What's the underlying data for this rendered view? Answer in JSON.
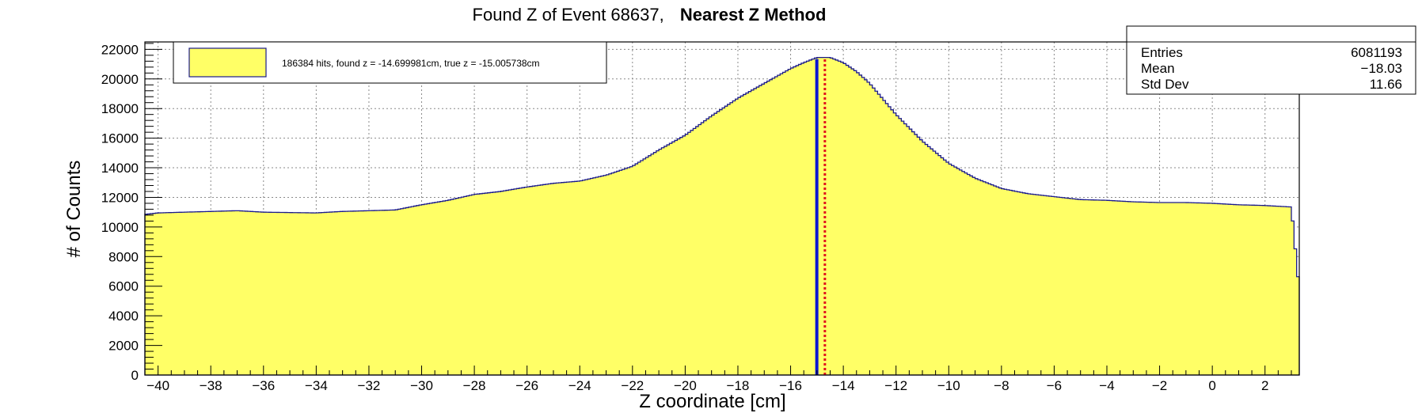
{
  "chart_data": {
    "type": "histogram",
    "title_prefix": "Found Z of Event 68637,",
    "title_bold": "Nearest Z Method",
    "xlabel": "Z coordinate [cm]",
    "ylabel": "# of Counts",
    "xlim": [
      -40.5,
      3.3
    ],
    "ylim": [
      0,
      22500
    ],
    "x_ticks": [
      -40,
      -38,
      -36,
      -34,
      -32,
      -30,
      -28,
      -26,
      -24,
      -22,
      -20,
      -18,
      -16,
      -14,
      -12,
      -10,
      -8,
      -6,
      -4,
      -2,
      0,
      2
    ],
    "y_ticks": [
      0,
      2000,
      4000,
      6000,
      8000,
      10000,
      12000,
      14000,
      16000,
      18000,
      20000,
      22000
    ],
    "grid": true,
    "fill_color": "#ffff66",
    "line_color": "#1a1a8c",
    "curve": [
      {
        "x": -40.5,
        "y": 10850
      },
      {
        "x": -40.0,
        "y": 10950
      },
      {
        "x": -38.0,
        "y": 11050
      },
      {
        "x": -37.0,
        "y": 11100
      },
      {
        "x": -36.0,
        "y": 11000
      },
      {
        "x": -34.0,
        "y": 10950
      },
      {
        "x": -33.0,
        "y": 11050
      },
      {
        "x": -32.0,
        "y": 11100
      },
      {
        "x": -31.0,
        "y": 11150
      },
      {
        "x": -30.0,
        "y": 11500
      },
      {
        "x": -29.0,
        "y": 11800
      },
      {
        "x": -28.0,
        "y": 12200
      },
      {
        "x": -27.0,
        "y": 12400
      },
      {
        "x": -26.0,
        "y": 12700
      },
      {
        "x": -25.0,
        "y": 12950
      },
      {
        "x": -24.0,
        "y": 13100
      },
      {
        "x": -23.0,
        "y": 13500
      },
      {
        "x": -22.0,
        "y": 14100
      },
      {
        "x": -21.0,
        "y": 15200
      },
      {
        "x": -20.0,
        "y": 16200
      },
      {
        "x": -19.0,
        "y": 17500
      },
      {
        "x": -18.0,
        "y": 18700
      },
      {
        "x": -17.0,
        "y": 19700
      },
      {
        "x": -16.0,
        "y": 20700
      },
      {
        "x": -15.5,
        "y": 21100
      },
      {
        "x": -15.0,
        "y": 21450
      },
      {
        "x": -14.5,
        "y": 21450
      },
      {
        "x": -14.0,
        "y": 21100
      },
      {
        "x": -13.5,
        "y": 20500
      },
      {
        "x": -13.0,
        "y": 19700
      },
      {
        "x": -12.0,
        "y": 17600
      },
      {
        "x": -11.0,
        "y": 15800
      },
      {
        "x": -10.0,
        "y": 14300
      },
      {
        "x": -9.0,
        "y": 13300
      },
      {
        "x": -8.0,
        "y": 12600
      },
      {
        "x": -7.0,
        "y": 12250
      },
      {
        "x": -6.0,
        "y": 12050
      },
      {
        "x": -5.0,
        "y": 11850
      },
      {
        "x": -4.0,
        "y": 11800
      },
      {
        "x": -3.0,
        "y": 11700
      },
      {
        "x": -2.0,
        "y": 11650
      },
      {
        "x": -1.0,
        "y": 11650
      },
      {
        "x": 0.0,
        "y": 11600
      },
      {
        "x": 1.0,
        "y": 11500
      },
      {
        "x": 2.0,
        "y": 11450
      },
      {
        "x": 3.0,
        "y": 11350
      },
      {
        "x": 3.3,
        "y": 5700
      }
    ],
    "found_z": -14.699981,
    "true_z": -15.005738,
    "found_line_color": "#e0141e",
    "true_line_color": "#0a14d2",
    "legend_text": "186384 hits, found z = -14.699981cm, true z = -15.005738cm",
    "stats": [
      {
        "label": "Entries",
        "value": "6081193"
      },
      {
        "label": "Mean",
        "value": "−18.03"
      },
      {
        "label": "Std Dev",
        "value": "11.66"
      }
    ]
  }
}
